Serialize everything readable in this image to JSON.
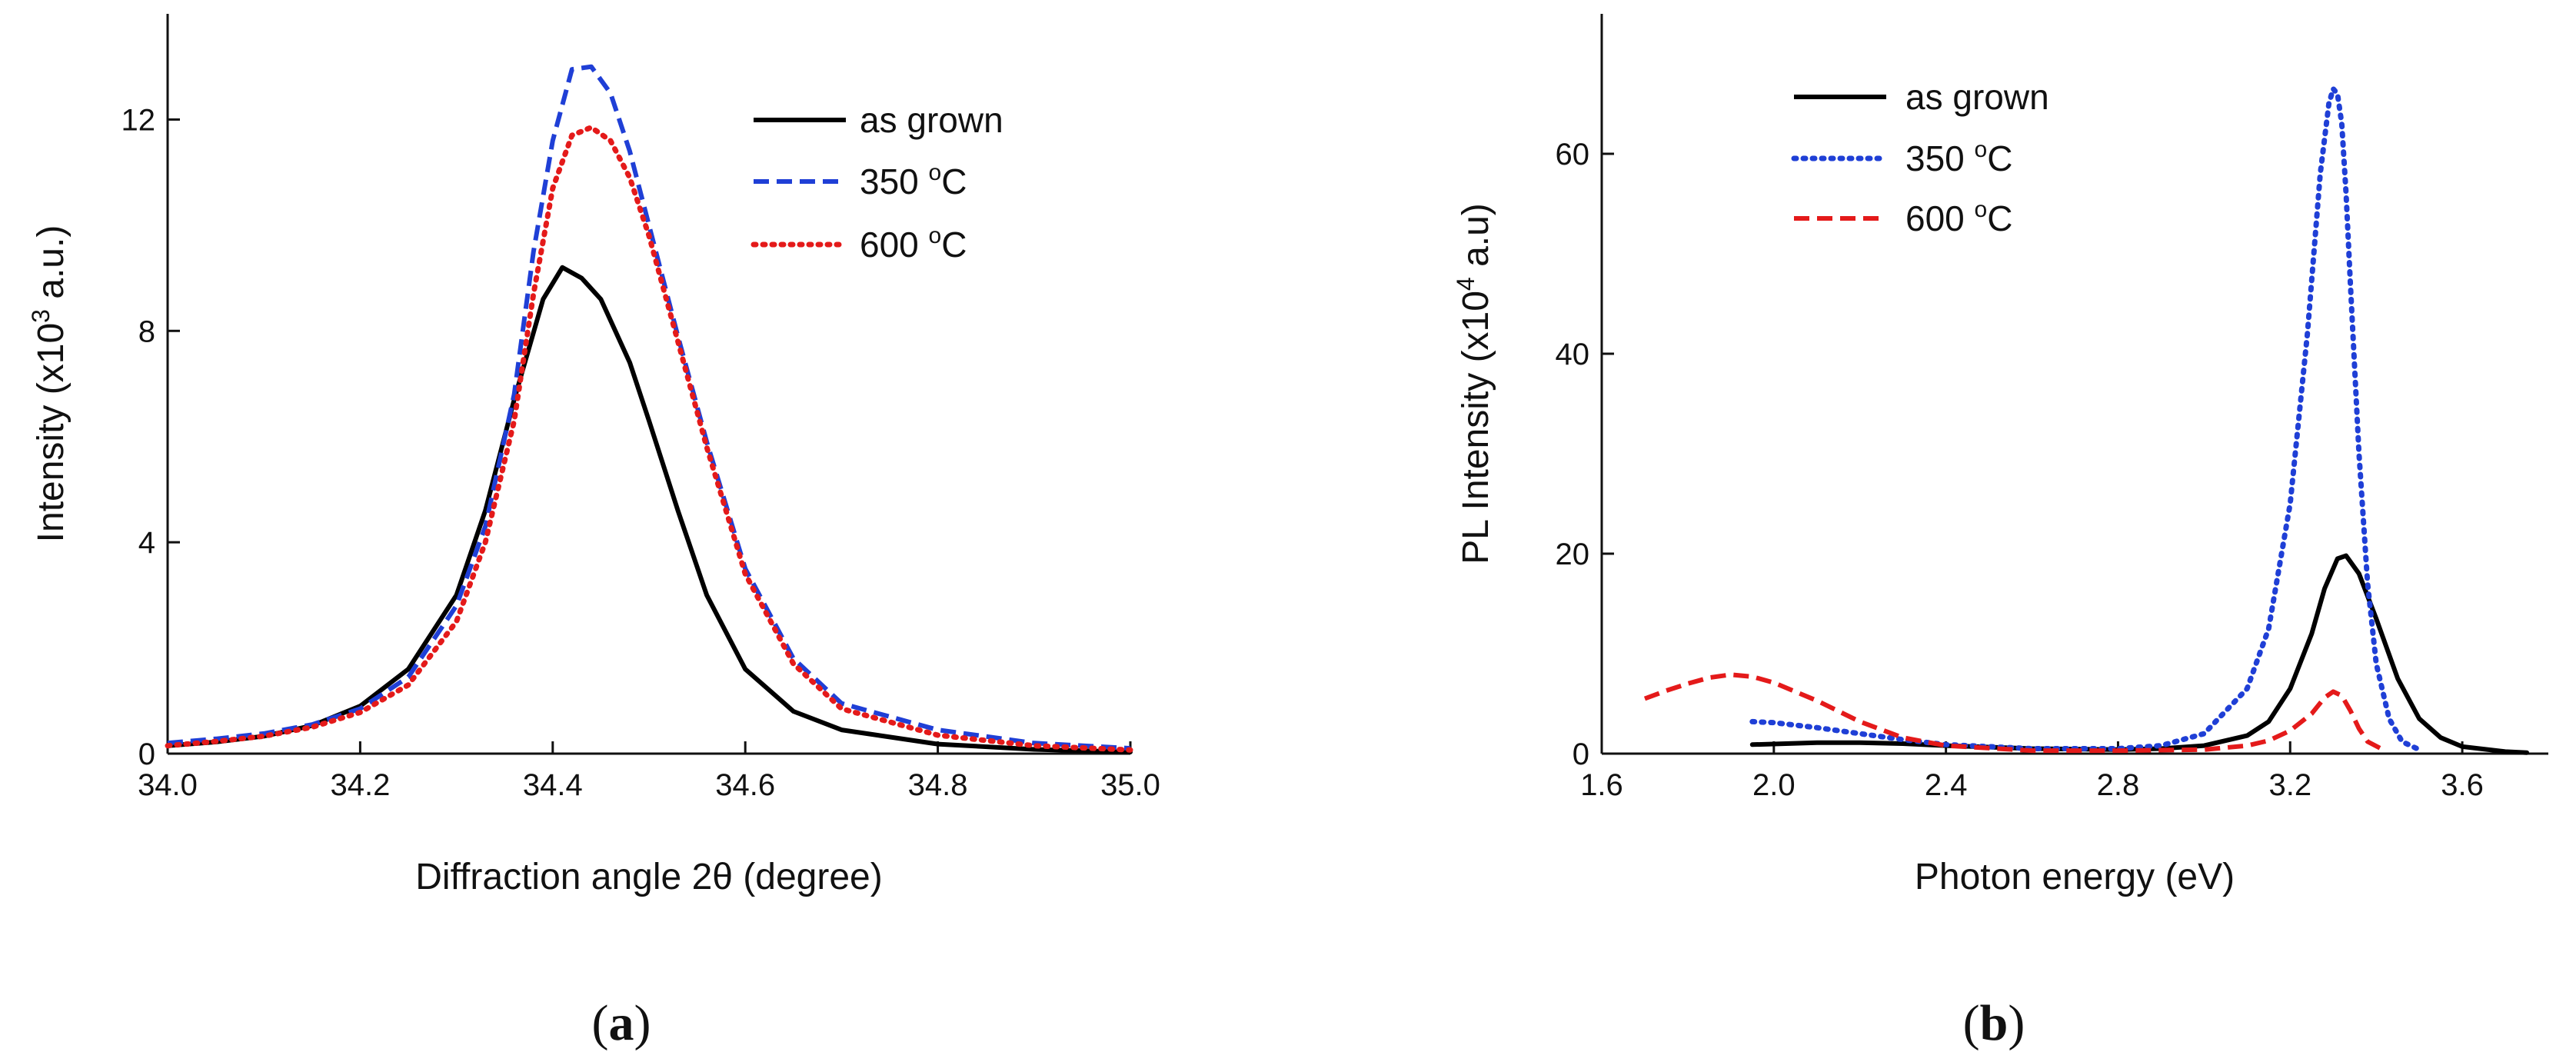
{
  "chart_data": [
    {
      "panel": "(a)",
      "panel_letter": "a",
      "type": "line",
      "xlabel": "Diffraction angle 2θ (degree)",
      "ylabel_main": "Intensity (x10",
      "ylabel_sup": "3",
      "ylabel_tail": " a.u.)",
      "xlim": [
        34.0,
        35.0
      ],
      "ylim": [
        0,
        14
      ],
      "xticks": [
        34.0,
        34.2,
        34.4,
        34.6,
        34.8,
        35.0
      ],
      "xtick_labels": [
        "34.0",
        "34.2",
        "34.4",
        "34.6",
        "34.8",
        "35.0"
      ],
      "yticks": [
        0,
        4,
        8,
        12
      ],
      "ytick_labels": [
        "0",
        "4",
        "8",
        "12"
      ],
      "legend_position": "top-right",
      "series": [
        {
          "name": "as grown",
          "name_main": "as grown",
          "name_sup": "",
          "name_tail": "",
          "color": "#000000",
          "style": "solid",
          "x": [
            34.0,
            34.05,
            34.1,
            34.15,
            34.2,
            34.25,
            34.3,
            34.33,
            34.36,
            34.39,
            34.41,
            34.43,
            34.45,
            34.48,
            34.5,
            34.53,
            34.56,
            34.6,
            34.65,
            34.7,
            34.8,
            34.9,
            35.0
          ],
          "y": [
            0.15,
            0.22,
            0.33,
            0.53,
            0.9,
            1.6,
            3.0,
            4.6,
            6.7,
            8.6,
            9.2,
            9.0,
            8.6,
            7.4,
            6.3,
            4.6,
            3.0,
            1.6,
            0.8,
            0.45,
            0.18,
            0.08,
            0.03
          ]
        },
        {
          "name": "350 °C",
          "name_main": "350 ",
          "name_sup": "o",
          "name_tail": "C",
          "color": "#1f3fd6",
          "style": "dashed",
          "x": [
            34.0,
            34.05,
            34.1,
            34.15,
            34.2,
            34.25,
            34.3,
            34.33,
            34.36,
            34.38,
            34.4,
            34.42,
            34.44,
            34.46,
            34.48,
            34.5,
            34.53,
            34.56,
            34.6,
            34.65,
            34.7,
            34.8,
            34.9,
            35.0
          ],
          "y": [
            0.2,
            0.28,
            0.38,
            0.55,
            0.85,
            1.45,
            2.8,
            4.3,
            6.8,
            9.5,
            11.6,
            12.95,
            13.0,
            12.5,
            11.4,
            10.0,
            7.9,
            5.9,
            3.5,
            1.8,
            0.95,
            0.45,
            0.2,
            0.1
          ]
        },
        {
          "name": "600 °C",
          "name_main": "600 ",
          "name_sup": "o",
          "name_tail": "C",
          "color": "#e41a1a",
          "style": "dotted",
          "x": [
            34.0,
            34.05,
            34.1,
            34.15,
            34.2,
            34.25,
            34.3,
            34.33,
            34.36,
            34.38,
            34.4,
            34.42,
            34.44,
            34.46,
            34.48,
            34.5,
            34.53,
            34.56,
            34.6,
            34.65,
            34.7,
            34.8,
            34.9,
            35.0
          ],
          "y": [
            0.15,
            0.23,
            0.33,
            0.5,
            0.78,
            1.3,
            2.5,
            4.0,
            6.3,
            8.7,
            10.7,
            11.7,
            11.85,
            11.6,
            10.9,
            9.8,
            7.8,
            5.8,
            3.4,
            1.7,
            0.85,
            0.35,
            0.15,
            0.07
          ]
        }
      ]
    },
    {
      "panel": "(b)",
      "panel_letter": "b",
      "type": "line",
      "xlabel": "Photon energy (eV)",
      "ylabel_main": "PL Intensity (x10",
      "ylabel_sup": "4",
      "ylabel_tail": " a.u)",
      "xlim": [
        1.6,
        3.8
      ],
      "ylim": [
        0,
        74
      ],
      "xticks": [
        1.6,
        2.0,
        2.4,
        2.8,
        3.2,
        3.6
      ],
      "xtick_labels": [
        "1.6",
        "2.0",
        "2.4",
        "2.8",
        "3.2",
        "3.6"
      ],
      "yticks": [
        0,
        20,
        40,
        60
      ],
      "ytick_labels": [
        "0",
        "20",
        "40",
        "60"
      ],
      "legend_position": "top-left",
      "series": [
        {
          "name": "as grown",
          "name_main": "as grown",
          "name_sup": "",
          "name_tail": "",
          "color": "#000000",
          "style": "solid",
          "x": [
            1.95,
            2.1,
            2.2,
            2.3,
            2.4,
            2.6,
            2.8,
            2.9,
            3.0,
            3.1,
            3.15,
            3.2,
            3.25,
            3.28,
            3.31,
            3.33,
            3.36,
            3.4,
            3.45,
            3.5,
            3.55,
            3.6,
            3.7,
            3.75
          ],
          "y": [
            0.9,
            1.1,
            1.1,
            1.0,
            0.8,
            0.5,
            0.4,
            0.5,
            0.8,
            1.8,
            3.2,
            6.5,
            12.0,
            16.5,
            19.5,
            19.8,
            18.0,
            13.5,
            7.5,
            3.5,
            1.6,
            0.7,
            0.2,
            0.1
          ]
        },
        {
          "name": "350 °C",
          "name_main": "350 ",
          "name_sup": "o",
          "name_tail": "C",
          "color": "#1f3fd6",
          "style": "dotted",
          "x": [
            1.95,
            2.0,
            2.1,
            2.2,
            2.3,
            2.4,
            2.6,
            2.8,
            2.9,
            3.0,
            3.1,
            3.15,
            3.2,
            3.24,
            3.27,
            3.29,
            3.3,
            3.31,
            3.32,
            3.33,
            3.34,
            3.36,
            3.38,
            3.4,
            3.43,
            3.46,
            3.5
          ],
          "y": [
            3.2,
            3.1,
            2.6,
            2.0,
            1.4,
            0.9,
            0.5,
            0.5,
            0.8,
            2.0,
            6.5,
            12.5,
            25.0,
            42.0,
            58.0,
            65.0,
            66.5,
            66.0,
            63.0,
            56.0,
            47.0,
            30.0,
            17.0,
            9.0,
            3.5,
            1.2,
            0.4
          ]
        },
        {
          "name": "600 °C",
          "name_main": "600 ",
          "name_sup": "o",
          "name_tail": "C",
          "color": "#e41a1a",
          "style": "dashed",
          "x": [
            1.7,
            1.75,
            1.8,
            1.85,
            1.9,
            1.95,
            2.0,
            2.1,
            2.2,
            2.3,
            2.4,
            2.6,
            2.8,
            3.0,
            3.1,
            3.15,
            3.2,
            3.25,
            3.28,
            3.3,
            3.32,
            3.34,
            3.36,
            3.38,
            3.42
          ],
          "y": [
            5.5,
            6.3,
            7.0,
            7.6,
            7.9,
            7.7,
            7.1,
            5.3,
            3.2,
            1.6,
            0.8,
            0.3,
            0.3,
            0.4,
            0.8,
            1.3,
            2.3,
            4.0,
            5.6,
            6.2,
            5.8,
            4.3,
            2.5,
            1.2,
            0.3
          ]
        }
      ]
    }
  ]
}
